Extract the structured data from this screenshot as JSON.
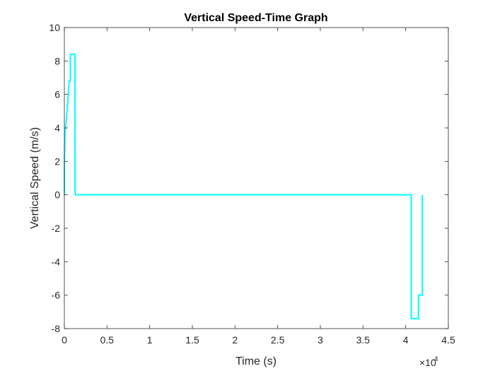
{
  "chart_data": {
    "type": "line",
    "title": "Vertical Speed-Time Graph",
    "xlabel": "Time (s)",
    "ylabel": "Vertical Speed (m/s)",
    "x_multiplier_label": {
      "base": "×10",
      "exponent": "4"
    },
    "xlim": [
      0,
      45000
    ],
    "ylim": [
      -8,
      10
    ],
    "x_ticks": [
      0,
      5000,
      10000,
      15000,
      20000,
      25000,
      30000,
      35000,
      40000,
      45000
    ],
    "x_tick_labels": [
      "0",
      "0.5",
      "1",
      "1.5",
      "2",
      "2.5",
      "3",
      "3.5",
      "4",
      "4.5"
    ],
    "y_ticks": [
      -8,
      -6,
      -4,
      -2,
      0,
      2,
      4,
      6,
      8,
      10
    ],
    "y_tick_labels": [
      "-8",
      "-6",
      "-4",
      "-2",
      "0",
      "2",
      "4",
      "6",
      "8",
      "10"
    ],
    "grid": false,
    "series": [
      {
        "color": "#00FFFF",
        "x": [
          0,
          0,
          80,
          200,
          400,
          550,
          550,
          700,
          700,
          1250,
          1250,
          1300,
          40650,
          40650,
          41500,
          41500,
          41950,
          41950
        ],
        "y": [
          0,
          2.0,
          3.8,
          4.3,
          5.5,
          6.7,
          6.8,
          6.8,
          8.4,
          8.4,
          0.2,
          0,
          0,
          -7.4,
          -7.4,
          -6.0,
          -6.0,
          0
        ]
      }
    ]
  }
}
